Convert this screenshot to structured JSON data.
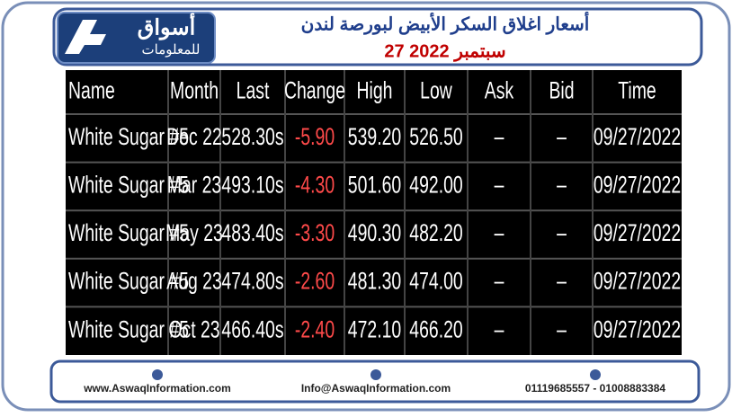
{
  "header": {
    "logo_main": "أسواق",
    "logo_sub": "للمعلومات",
    "title": "أسعار اغلاق السكر الأبيض لبورصة لندن",
    "date": "27 سبتمبر 2022"
  },
  "table": {
    "columns": [
      "Name",
      "Month",
      "Last",
      "Change",
      "High",
      "Low",
      "Ask",
      "Bid",
      "Time"
    ],
    "rows": [
      [
        "White Sugar #5",
        "Dec 22",
        "528.30s",
        "-5.90",
        "539.20",
        "526.50",
        "–",
        "–",
        "09/27/2022"
      ],
      [
        "White Sugar #5",
        "Mar 23",
        "493.10s",
        "-4.30",
        "501.60",
        "492.00",
        "–",
        "–",
        "09/27/2022"
      ],
      [
        "White Sugar #5",
        "May 23",
        "483.40s",
        "-3.30",
        "490.30",
        "482.20",
        "–",
        "–",
        "09/27/2022"
      ],
      [
        "White Sugar #5",
        "Aug 23",
        "474.80s",
        "-2.60",
        "481.30",
        "474.00",
        "–",
        "–",
        "09/27/2022"
      ],
      [
        "White Sugar #5",
        "Oct 23",
        "466.40s",
        "-2.40",
        "472.10",
        "466.20",
        "–",
        "–",
        "09/27/2022"
      ]
    ]
  },
  "footer": {
    "website": "www.AswaqInformation.com",
    "email": "Info@AswaqInformation.com",
    "phone": "01119685557 - 01008883384"
  }
}
